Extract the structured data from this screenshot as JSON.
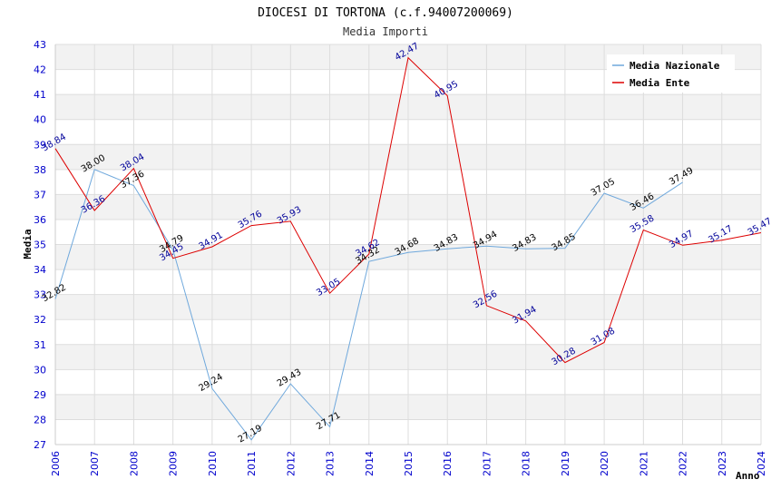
{
  "chart_data": {
    "type": "line",
    "title": "DIOCESI DI TORTONA (c.f.94007200069)",
    "subtitle": "Media Importi",
    "xlabel": "Anno",
    "ylabel": "Media",
    "ylim": [
      27,
      43
    ],
    "yticks": [
      27,
      28,
      29,
      30,
      31,
      32,
      33,
      34,
      35,
      36,
      37,
      38,
      39,
      40,
      41,
      42,
      43
    ],
    "categories": [
      "2006",
      "2007",
      "2008",
      "2009",
      "2010",
      "2011",
      "2012",
      "2013",
      "2014",
      "2015",
      "2016",
      "2017",
      "2018",
      "2019",
      "2020",
      "2021",
      "2022",
      "2023",
      "2024"
    ],
    "legend_position": "top-right",
    "series": [
      {
        "name": "Media Nazionale",
        "color": "#6fa8dc",
        "label_color": "#000000",
        "values": [
          32.82,
          38.0,
          37.36,
          34.79,
          29.24,
          27.19,
          29.43,
          27.71,
          34.32,
          34.68,
          34.83,
          34.94,
          34.83,
          34.85,
          37.05,
          36.46,
          37.49,
          null,
          null
        ],
        "labels": [
          "32.82",
          "38.00",
          "37.36",
          "34.79",
          "29.24",
          "27.19",
          "29.43",
          "27.71",
          "34.32",
          "34.68",
          "34.83",
          "34.94",
          "34.83",
          "34.85",
          "37.05",
          "36.46",
          "37.49",
          null,
          null
        ]
      },
      {
        "name": "Media Ente",
        "color": "#dd0000",
        "label_color": "#000099",
        "values": [
          38.84,
          36.36,
          38.04,
          34.45,
          34.91,
          35.76,
          35.93,
          33.05,
          34.62,
          42.47,
          40.95,
          32.56,
          31.94,
          30.28,
          31.08,
          35.58,
          34.97,
          35.17,
          35.47
        ],
        "labels": [
          "38.84",
          "36.36",
          "38.04",
          "34.45",
          "34.91",
          "35.76",
          "35.93",
          "33.05",
          "34.62",
          "42.47",
          "40.95",
          "32.56",
          "31.94",
          "30.28",
          "31.08",
          "35.58",
          "34.97",
          "35.17",
          "35.47"
        ]
      }
    ]
  }
}
